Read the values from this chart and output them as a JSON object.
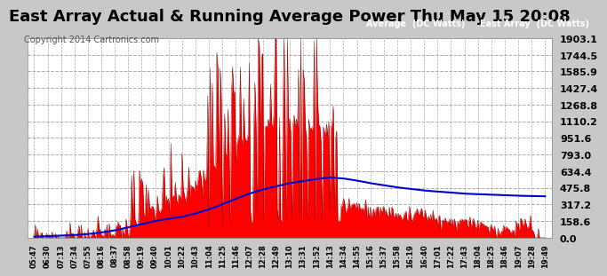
{
  "title": "East Array Actual & Running Average Power Thu May 15 20:08",
  "copyright": "Copyright 2014 Cartronics.com",
  "legend_avg": "Average  (DC Watts)",
  "legend_east": "East Array  (DC Watts)",
  "yticks": [
    0.0,
    158.6,
    317.2,
    475.8,
    634.4,
    793.0,
    951.6,
    1110.2,
    1268.8,
    1427.4,
    1585.9,
    1744.5,
    1903.1
  ],
  "ymax": 1903.1,
  "fig_bg_color": "#c8c8c8",
  "plot_bg_color": "#ffffff",
  "grid_color": "#aaaaaa",
  "bar_color": "#ff0000",
  "avg_color": "#0000cc",
  "title_fontsize": 13,
  "copyright_fontsize": 7,
  "legend_fontsize": 7,
  "ytick_fontsize": 8,
  "xtick_fontsize": 6,
  "xtick_labels": [
    "05:47",
    "06:30",
    "07:13",
    "07:34",
    "07:55",
    "08:16",
    "08:37",
    "08:58",
    "09:19",
    "09:40",
    "10:01",
    "10:22",
    "10:43",
    "11:04",
    "11:25",
    "11:46",
    "12:07",
    "12:28",
    "12:49",
    "13:10",
    "13:31",
    "13:52",
    "14:13",
    "14:34",
    "14:55",
    "15:16",
    "15:37",
    "15:58",
    "16:19",
    "16:40",
    "17:01",
    "17:22",
    "17:43",
    "18:04",
    "18:25",
    "18:46",
    "19:07",
    "19:28",
    "19:49"
  ],
  "avg_x": [
    0,
    1,
    2,
    3,
    4,
    5,
    6,
    7,
    8,
    9,
    10,
    11,
    12,
    13,
    14,
    15,
    16,
    17,
    18,
    19,
    20,
    21,
    22,
    23,
    24,
    25,
    26,
    27,
    28,
    29,
    30,
    31,
    32,
    33,
    34,
    35,
    36,
    37,
    38
  ],
  "avg_y": [
    10,
    15,
    20,
    25,
    35,
    50,
    70,
    100,
    130,
    160,
    180,
    200,
    230,
    270,
    320,
    370,
    420,
    460,
    490,
    520,
    540,
    560,
    575,
    565,
    545,
    520,
    500,
    480,
    465,
    450,
    440,
    430,
    420,
    415,
    410,
    405,
    400,
    398,
    395
  ]
}
